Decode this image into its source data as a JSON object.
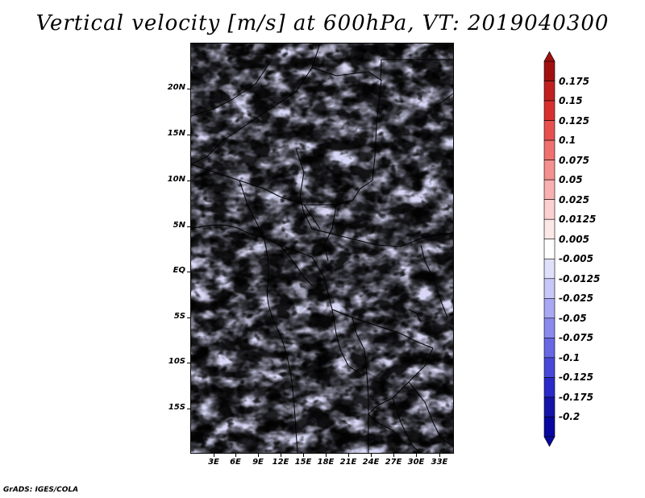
{
  "title": "Vertical velocity [m/s] at 600hPa, VT: 2019040300",
  "credit": "GrADS: IGES/COLA",
  "map": {
    "lat_labels": [
      "20N",
      "15N",
      "10N",
      "5N",
      "EQ",
      "5S",
      "10S",
      "15S"
    ],
    "lon_labels": [
      "3E",
      "6E",
      "9E",
      "12E",
      "15E",
      "18E",
      "21E",
      "24E",
      "27E",
      "30E",
      "33E"
    ],
    "field_colors": {
      "positive": "#e8585a",
      "negative": "#5b5be8",
      "neutral": "#ffffff"
    }
  },
  "colorbar": {
    "labels": [
      "0.175",
      "0.15",
      "0.125",
      "0.1",
      "0.075",
      "0.05",
      "0.025",
      "0.0125",
      "0.005",
      "-0.005",
      "-0.0125",
      "-0.025",
      "-0.05",
      "-0.075",
      "-0.1",
      "-0.125",
      "-0.175",
      "-0.2"
    ],
    "colors": [
      "#a01010",
      "#c02020",
      "#d83030",
      "#e85050",
      "#f07070",
      "#f59090",
      "#f8b0b0",
      "#fbd0d0",
      "#fde8e8",
      "#ffffff",
      "#e0e0fb",
      "#c8c8f8",
      "#a8a8f4",
      "#8a8aee",
      "#6868e4",
      "#4848d8",
      "#2a2ac8",
      "#1414a8",
      "#0808a0"
    ]
  }
}
